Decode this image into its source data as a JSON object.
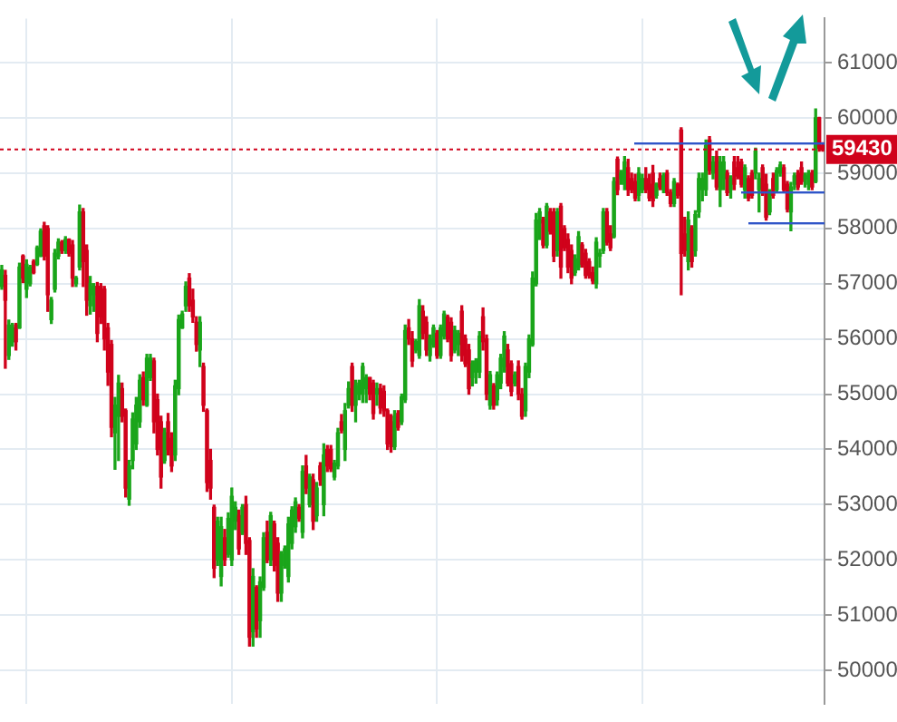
{
  "chart_data": {
    "type": "candlestick",
    "categories": [
      null,
      null,
      null,
      null,
      null,
      null,
      null,
      null,
      null,
      null,
      null,
      null,
      null,
      null,
      null,
      null,
      null,
      null,
      null,
      null,
      null,
      null,
      null,
      null,
      null,
      null,
      null,
      null,
      null,
      null,
      null,
      null,
      null,
      null,
      null,
      null,
      null,
      null,
      null,
      null,
      null,
      null,
      null,
      null,
      null,
      null,
      null,
      null,
      null,
      null,
      null,
      null,
      null,
      null,
      null,
      null,
      null,
      null,
      null,
      null,
      null,
      null,
      null,
      null,
      null,
      null,
      null,
      null,
      null,
      null,
      null,
      null,
      null,
      null,
      null,
      null,
      null,
      null,
      null,
      null,
      null,
      null,
      null,
      null,
      null,
      null,
      null,
      null,
      null,
      null,
      null,
      null,
      null,
      null,
      null,
      null,
      null,
      null,
      null,
      null,
      null,
      null,
      null,
      null,
      null,
      null,
      null,
      null,
      null,
      null,
      null,
      null,
      null,
      null,
      null,
      null,
      null,
      null,
      null,
      null,
      null,
      null,
      null,
      null,
      null,
      null,
      null,
      null,
      null,
      null,
      null,
      null,
      null,
      null,
      null,
      null,
      null,
      null,
      null,
      null,
      null,
      null,
      null,
      null,
      null,
      null,
      null,
      null,
      null,
      null,
      null,
      null,
      null,
      null,
      null,
      null,
      null,
      null,
      null,
      null,
      null,
      null,
      null,
      null,
      null,
      null,
      null,
      null,
      null,
      null,
      null,
      null,
      null,
      null,
      null,
      null,
      null,
      null,
      null,
      null,
      null,
      null,
      null,
      null,
      null,
      null,
      null,
      null,
      null,
      null,
      null,
      null,
      null,
      null,
      null,
      null,
      null,
      null,
      null,
      null,
      null,
      null,
      null,
      null,
      null,
      null,
      null,
      null,
      null,
      null,
      null,
      null,
      null,
      null,
      null,
      null,
      null,
      null,
      null,
      null,
      null,
      null,
      null,
      null,
      null,
      null,
      null,
      null,
      null,
      null,
      null,
      null,
      null
    ],
    "ohlc": [
      [
        56950,
        57330,
        56900,
        57250
      ],
      [
        57150,
        57240,
        55470,
        56700
      ],
      [
        55700,
        56340,
        55630,
        56250
      ],
      [
        55950,
        56280,
        55870,
        56200
      ],
      [
        56250,
        56280,
        55800,
        55950
      ],
      [
        56200,
        57370,
        56190,
        57300
      ],
      [
        57500,
        57520,
        57020,
        57100
      ],
      [
        56900,
        57430,
        56750,
        57350
      ],
      [
        57000,
        57330,
        56960,
        57300
      ],
      [
        57400,
        57430,
        57180,
        57200
      ],
      [
        57350,
        57680,
        57330,
        57650
      ],
      [
        57500,
        57990,
        57490,
        57950
      ],
      [
        58050,
        58110,
        57430,
        57500
      ],
      [
        58000,
        58050,
        56500,
        56800
      ],
      [
        56350,
        56750,
        56280,
        56700
      ],
      [
        56900,
        57620,
        56850,
        57550
      ],
      [
        57500,
        57810,
        57450,
        57750
      ],
      [
        57750,
        57780,
        57550,
        57600
      ],
      [
        57600,
        57850,
        57550,
        57800
      ],
      [
        57800,
        57810,
        57500,
        57550
      ],
      [
        57700,
        57780,
        56950,
        57100
      ],
      [
        57000,
        57130,
        56950,
        57100
      ],
      [
        57300,
        58420,
        57250,
        58300
      ],
      [
        58300,
        58360,
        56950,
        57400
      ],
      [
        57600,
        57700,
        56430,
        56700
      ],
      [
        56600,
        57130,
        56450,
        57000
      ],
      [
        56800,
        57000,
        56500,
        56950
      ],
      [
        56950,
        57020,
        55950,
        56100
      ],
      [
        56950,
        57000,
        56280,
        56400
      ],
      [
        56900,
        56950,
        55800,
        56000
      ],
      [
        56200,
        56280,
        55160,
        55400
      ],
      [
        55900,
        55970,
        54230,
        54400
      ],
      [
        54300,
        54940,
        53640,
        54800
      ],
      [
        54600,
        55340,
        53800,
        55200
      ],
      [
        55100,
        55200,
        54500,
        54600
      ],
      [
        54700,
        54730,
        53140,
        53300
      ],
      [
        53100,
        53800,
        52990,
        53700
      ],
      [
        53800,
        54660,
        53650,
        54550
      ],
      [
        54100,
        54940,
        54000,
        54800
      ],
      [
        54500,
        55350,
        54400,
        55250
      ],
      [
        55300,
        55400,
        54800,
        54900
      ],
      [
        54800,
        55720,
        54780,
        55650
      ],
      [
        55300,
        55720,
        55250,
        55650
      ],
      [
        55600,
        55650,
        54300,
        54500
      ],
      [
        54900,
        55000,
        53900,
        54000
      ],
      [
        54500,
        54600,
        53300,
        53500
      ],
      [
        53800,
        54380,
        53750,
        54300
      ],
      [
        54500,
        54650,
        53900,
        54000
      ],
      [
        54200,
        54300,
        53600,
        53700
      ],
      [
        53900,
        55250,
        53800,
        55150
      ],
      [
        55100,
        56430,
        54990,
        56350
      ],
      [
        56200,
        56500,
        56190,
        56450
      ],
      [
        56600,
        57030,
        56500,
        56950
      ],
      [
        57100,
        57180,
        56500,
        56600
      ],
      [
        56700,
        56900,
        56300,
        56400
      ],
      [
        56300,
        56400,
        55780,
        55900
      ],
      [
        55800,
        56400,
        55500,
        56300
      ],
      [
        55500,
        55560,
        54690,
        54800
      ],
      [
        54700,
        54730,
        53240,
        53400
      ],
      [
        53800,
        54000,
        53100,
        53300
      ],
      [
        52950,
        52990,
        51680,
        51850
      ],
      [
        52000,
        52770,
        51900,
        52700
      ],
      [
        51700,
        52770,
        51530,
        52600
      ],
      [
        52400,
        52550,
        51900,
        52000
      ],
      [
        52100,
        52850,
        52050,
        52750
      ],
      [
        52000,
        53300,
        51900,
        53150
      ],
      [
        52700,
        53050,
        52550,
        52950
      ],
      [
        52800,
        52900,
        52100,
        52200
      ],
      [
        52500,
        53000,
        52460,
        52950
      ],
      [
        53000,
        53150,
        52100,
        52300
      ],
      [
        52350,
        52400,
        50440,
        50600
      ],
      [
        50700,
        51840,
        50440,
        51700
      ],
      [
        51500,
        51530,
        50600,
        50750
      ],
      [
        50900,
        51690,
        50600,
        51600
      ],
      [
        51500,
        52490,
        51450,
        52400
      ],
      [
        52500,
        52700,
        51950,
        52000
      ],
      [
        52000,
        52860,
        51900,
        52800
      ],
      [
        52650,
        52700,
        51800,
        51900
      ],
      [
        52300,
        52400,
        51250,
        51400
      ],
      [
        51400,
        52150,
        51250,
        52100
      ],
      [
        51900,
        52250,
        51850,
        52200
      ],
      [
        51700,
        52770,
        51600,
        52650
      ],
      [
        52300,
        52960,
        52200,
        52900
      ],
      [
        52600,
        53120,
        52500,
        53050
      ],
      [
        52950,
        53000,
        52700,
        52750
      ],
      [
        52500,
        53700,
        52400,
        53600
      ],
      [
        53700,
        53890,
        53200,
        53300
      ],
      [
        53000,
        53550,
        52960,
        53500
      ],
      [
        53450,
        53550,
        52550,
        52700
      ],
      [
        52800,
        53400,
        52700,
        53300
      ],
      [
        53700,
        53760,
        53350,
        53450
      ],
      [
        53000,
        54100,
        52800,
        53900
      ],
      [
        54000,
        54070,
        53600,
        53700
      ],
      [
        54000,
        54070,
        53600,
        53650
      ],
      [
        53500,
        53800,
        53450,
        53750
      ],
      [
        53700,
        54380,
        53650,
        54300
      ],
      [
        54500,
        54630,
        54300,
        54350
      ],
      [
        54000,
        54830,
        53800,
        54700
      ],
      [
        54800,
        55220,
        54750,
        55100
      ],
      [
        55500,
        55560,
        54690,
        54800
      ],
      [
        54800,
        55250,
        54500,
        55150
      ],
      [
        55000,
        55250,
        54900,
        55200
      ],
      [
        55000,
        55560,
        54850,
        55500
      ],
      [
        55100,
        55350,
        54850,
        55300
      ],
      [
        55300,
        55300,
        54900,
        55000
      ],
      [
        55200,
        55250,
        54550,
        54650
      ],
      [
        55000,
        55200,
        54800,
        55100
      ],
      [
        55100,
        55180,
        54650,
        54750
      ],
      [
        55050,
        55150,
        54600,
        54700
      ],
      [
        54700,
        54730,
        54000,
        54100
      ],
      [
        54500,
        54630,
        53950,
        54050
      ],
      [
        54050,
        54700,
        54000,
        54600
      ],
      [
        54650,
        54700,
        54350,
        54400
      ],
      [
        54500,
        55000,
        54450,
        54950
      ],
      [
        54900,
        56250,
        54850,
        56150
      ],
      [
        56200,
        56350,
        55900,
        56000
      ],
      [
        56000,
        56130,
        55500,
        55600
      ],
      [
        55800,
        55990,
        55750,
        55950
      ],
      [
        55700,
        56710,
        55650,
        56600
      ],
      [
        56500,
        56600,
        56000,
        56100
      ],
      [
        56300,
        56400,
        55700,
        55800
      ],
      [
        55700,
        56070,
        55600,
        56000
      ],
      [
        55900,
        56250,
        55850,
        56200
      ],
      [
        56100,
        56150,
        55650,
        55700
      ],
      [
        55700,
        56250,
        55650,
        56200
      ],
      [
        56050,
        56500,
        56000,
        56450
      ],
      [
        56400,
        56430,
        55950,
        56000
      ],
      [
        56300,
        56380,
        55600,
        55700
      ],
      [
        55800,
        56230,
        55750,
        56150
      ],
      [
        55900,
        56150,
        55700,
        56100
      ],
      [
        56500,
        56600,
        55600,
        55700
      ],
      [
        56000,
        56070,
        55500,
        55550
      ],
      [
        55800,
        55900,
        55000,
        55100
      ],
      [
        55300,
        55600,
        55150,
        55550
      ],
      [
        55400,
        55640,
        55200,
        55600
      ],
      [
        55400,
        56130,
        55300,
        56050
      ],
      [
        56400,
        56560,
        55800,
        55950
      ],
      [
        56000,
        56070,
        54900,
        55000
      ],
      [
        54800,
        55410,
        54730,
        55350
      ],
      [
        55150,
        55190,
        54730,
        54800
      ],
      [
        54900,
        55400,
        54800,
        55350
      ],
      [
        55200,
        55720,
        55100,
        55650
      ],
      [
        55500,
        56130,
        55400,
        56050
      ],
      [
        55800,
        55900,
        55150,
        55200
      ],
      [
        55550,
        55600,
        54970,
        55050
      ],
      [
        55200,
        55400,
        55150,
        55350
      ],
      [
        55500,
        55600,
        54900,
        55000
      ],
      [
        55000,
        55100,
        54550,
        54600
      ],
      [
        54700,
        55560,
        54600,
        55500
      ],
      [
        55400,
        56070,
        55300,
        56000
      ],
      [
        55900,
        57210,
        55870,
        57100
      ],
      [
        57000,
        58270,
        56960,
        58150
      ],
      [
        58100,
        58360,
        57800,
        58300
      ],
      [
        58150,
        58200,
        57650,
        57700
      ],
      [
        57700,
        58450,
        57650,
        58400
      ],
      [
        58300,
        58360,
        57900,
        57950
      ],
      [
        58300,
        58360,
        57400,
        57500
      ],
      [
        57600,
        58360,
        57500,
        58300
      ],
      [
        58400,
        58450,
        57100,
        57300
      ],
      [
        58000,
        58050,
        57600,
        57650
      ],
      [
        57800,
        57900,
        57200,
        57300
      ],
      [
        57600,
        57700,
        57000,
        57100
      ],
      [
        57200,
        57520,
        57150,
        57450
      ],
      [
        57300,
        57940,
        57250,
        57850
      ],
      [
        57700,
        57740,
        57300,
        57350
      ],
      [
        57550,
        57620,
        57100,
        57150
      ],
      [
        57400,
        57450,
        57100,
        57150
      ],
      [
        57200,
        57300,
        57000,
        57050
      ],
      [
        57000,
        57830,
        56920,
        57750
      ],
      [
        57500,
        57620,
        57300,
        57550
      ],
      [
        57600,
        58360,
        57550,
        58300
      ],
      [
        58300,
        58360,
        57700,
        57750
      ],
      [
        57900,
        58050,
        57600,
        57650
      ],
      [
        57850,
        58920,
        57830,
        58850
      ],
      [
        59250,
        59290,
        58610,
        58700
      ],
      [
        58900,
        59050,
        58800,
        59000
      ],
      [
        58800,
        59300,
        58700,
        59200
      ],
      [
        59100,
        59250,
        58600,
        58700
      ],
      [
        58900,
        59000,
        58650,
        58700
      ],
      [
        58850,
        58980,
        58500,
        58550
      ],
      [
        58600,
        59100,
        58500,
        59000
      ],
      [
        58700,
        58980,
        58650,
        58900
      ],
      [
        58900,
        59100,
        58650,
        58700
      ],
      [
        58800,
        58980,
        58500,
        58550
      ],
      [
        59000,
        59140,
        58400,
        58500
      ],
      [
        58600,
        58820,
        58550,
        58800
      ],
      [
        58900,
        59000,
        58700,
        58750
      ],
      [
        58700,
        59000,
        58650,
        58950
      ],
      [
        59000,
        59050,
        58600,
        58650
      ],
      [
        58650,
        58700,
        58400,
        58450
      ],
      [
        58450,
        58900,
        58400,
        58850
      ],
      [
        58800,
        58820,
        58550,
        58600
      ],
      [
        59780,
        59820,
        56800,
        57550
      ],
      [
        57900,
        58200,
        57500,
        57600
      ],
      [
        57400,
        58300,
        57250,
        58150
      ],
      [
        58000,
        58050,
        57300,
        57400
      ],
      [
        57600,
        58320,
        57500,
        58250
      ],
      [
        58300,
        59000,
        58200,
        58900
      ],
      [
        58700,
        59000,
        58500,
        58900
      ],
      [
        58700,
        59600,
        58600,
        59500
      ],
      [
        59600,
        59660,
        58980,
        59050
      ],
      [
        59000,
        59300,
        58900,
        59200
      ],
      [
        59300,
        59400,
        58700,
        58750
      ],
      [
        58700,
        59300,
        58400,
        59200
      ],
      [
        58900,
        59300,
        58700,
        59200
      ],
      [
        59000,
        59050,
        58600,
        58650
      ],
      [
        58700,
        58950,
        58550,
        58900
      ],
      [
        59200,
        59300,
        58700,
        58800
      ],
      [
        59100,
        59300,
        58900,
        58950
      ],
      [
        59200,
        59250,
        58750,
        58800
      ],
      [
        58700,
        59150,
        58550,
        59100
      ],
      [
        58900,
        58950,
        58500,
        58550
      ],
      [
        59000,
        59050,
        58550,
        58600
      ],
      [
        59000,
        59450,
        58900,
        59400
      ],
      [
        58700,
        59000,
        58300,
        58900
      ],
      [
        59100,
        59150,
        58600,
        58650
      ],
      [
        58800,
        58980,
        58150,
        58200
      ],
      [
        58300,
        58700,
        58250,
        58650
      ],
      [
        58900,
        59000,
        58550,
        58600
      ],
      [
        58700,
        59100,
        58650,
        59050
      ],
      [
        59000,
        59200,
        58950,
        59150
      ],
      [
        59100,
        59150,
        58650,
        58700
      ],
      [
        58800,
        58850,
        58300,
        58350
      ],
      [
        58300,
        58830,
        57960,
        58750
      ],
      [
        58800,
        59000,
        58700,
        58950
      ],
      [
        59000,
        59050,
        58700,
        58750
      ],
      [
        59100,
        59200,
        58800,
        58850
      ],
      [
        58900,
        59000,
        58750,
        58950
      ],
      [
        58800,
        59050,
        58700,
        59000
      ],
      [
        59000,
        59050,
        58700,
        58750
      ],
      [
        58850,
        60160,
        58830,
        60000
      ],
      [
        60000,
        60010,
        59400,
        59450
      ],
      [
        59500,
        59550,
        59400,
        59430
      ]
    ],
    "colors": [
      "#1aa51a",
      "#d0021b",
      "#1aa51a",
      "#1aa51a",
      "#d0021b",
      "#1aa51a",
      "#d0021b",
      "#1aa51a",
      "#1aa51a",
      "#d0021b",
      "#1aa51a",
      "#1aa51a",
      "#d0021b",
      "#d0021b",
      "#1aa51a",
      "#1aa51a",
      "#1aa51a",
      "#d0021b",
      "#1aa51a",
      "#d0021b",
      "#d0021b",
      "#1aa51a",
      "#1aa51a",
      "#d0021b",
      "#d0021b",
      "#1aa51a",
      "#1aa51a",
      "#d0021b",
      "#d0021b",
      "#d0021b",
      "#d0021b",
      "#d0021b",
      "#1aa51a",
      "#1aa51a",
      "#d0021b",
      "#d0021b",
      "#1aa51a",
      "#1aa51a",
      "#1aa51a",
      "#1aa51a",
      "#d0021b",
      "#1aa51a",
      "#1aa51a",
      "#d0021b",
      "#d0021b",
      "#d0021b",
      "#1aa51a",
      "#d0021b",
      "#d0021b",
      "#1aa51a",
      "#1aa51a",
      "#1aa51a",
      "#1aa51a",
      "#d0021b",
      "#d0021b",
      "#d0021b",
      "#1aa51a",
      "#d0021b",
      "#d0021b",
      "#d0021b",
      "#d0021b",
      "#1aa51a",
      "#1aa51a",
      "#d0021b",
      "#1aa51a",
      "#1aa51a",
      "#1aa51a",
      "#d0021b",
      "#1aa51a",
      "#d0021b",
      "#d0021b",
      "#1aa51a",
      "#d0021b",
      "#1aa51a",
      "#1aa51a",
      "#d0021b",
      "#1aa51a",
      "#d0021b",
      "#d0021b",
      "#1aa51a",
      "#1aa51a",
      "#1aa51a",
      "#1aa51a",
      "#1aa51a",
      "#d0021b",
      "#1aa51a",
      "#d0021b",
      "#1aa51a",
      "#d0021b",
      "#1aa51a",
      "#d0021b",
      "#1aa51a",
      "#d0021b",
      "#d0021b",
      "#1aa51a",
      "#1aa51a",
      "#d0021b",
      "#1aa51a",
      "#1aa51a",
      "#d0021b",
      "#1aa51a",
      "#1aa51a",
      "#1aa51a",
      "#1aa51a",
      "#d0021b",
      "#d0021b",
      "#1aa51a",
      "#d0021b",
      "#d0021b",
      "#d0021b",
      "#d0021b",
      "#1aa51a",
      "#d0021b",
      "#1aa51a",
      "#1aa51a",
      "#d0021b",
      "#d0021b",
      "#1aa51a",
      "#1aa51a",
      "#d0021b",
      "#d0021b",
      "#1aa51a",
      "#1aa51a",
      "#d0021b",
      "#1aa51a",
      "#1aa51a",
      "#d0021b",
      "#d0021b",
      "#1aa51a",
      "#1aa51a",
      "#d0021b",
      "#d0021b",
      "#d0021b",
      "#1aa51a",
      "#1aa51a",
      "#1aa51a",
      "#d0021b",
      "#d0021b",
      "#1aa51a",
      "#d0021b",
      "#1aa51a",
      "#1aa51a",
      "#1aa51a",
      "#d0021b",
      "#d0021b",
      "#1aa51a",
      "#d0021b",
      "#d0021b",
      "#1aa51a",
      "#1aa51a",
      "#1aa51a",
      "#1aa51a",
      "#1aa51a",
      "#d0021b",
      "#1aa51a",
      "#d0021b",
      "#d0021b",
      "#1aa51a",
      "#d0021b",
      "#d0021b",
      "#d0021b",
      "#d0021b",
      "#1aa51a",
      "#1aa51a",
      "#d0021b",
      "#d0021b",
      "#d0021b",
      "#d0021b",
      "#1aa51a",
      "#1aa51a",
      "#1aa51a",
      "#d0021b",
      "#d0021b",
      "#1aa51a",
      "#d0021b",
      "#1aa51a",
      "#1aa51a",
      "#d0021b",
      "#d0021b",
      "#d0021b",
      "#1aa51a",
      "#1aa51a",
      "#d0021b",
      "#d0021b",
      "#d0021b",
      "#1aa51a",
      "#d0021b",
      "#1aa51a",
      "#d0021b",
      "#d0021b",
      "#1aa51a",
      "#d0021b",
      "#d0021b",
      "#d0021b",
      "#1aa51a",
      "#d0021b",
      "#1aa51a",
      "#1aa51a",
      "#1aa51a",
      "#1aa51a",
      "#d0021b",
      "#1aa51a",
      "#d0021b",
      "#1aa51a",
      "#1aa51a",
      "#d0021b",
      "#1aa51a",
      "#d0021b",
      "#d0021b",
      "#d0021b",
      "#1aa51a",
      "#d0021b",
      "#d0021b",
      "#1aa51a",
      "#1aa51a",
      "#d0021b",
      "#d0021b",
      "#1aa51a",
      "#d0021b",
      "#1aa51a",
      "#1aa51a",
      "#d0021b",
      "#d0021b",
      "#1aa51a",
      "#1aa51a",
      "#d0021b",
      "#d0021b",
      "#1aa51a",
      "#1aa51a",
      "#d0021b",
      "#1aa51a",
      "#d0021b",
      "#d0021b"
    ],
    "ylim": [
      49400,
      61800
    ],
    "yticks": [
      50000,
      51000,
      52000,
      53000,
      54000,
      55000,
      56000,
      57000,
      58000,
      59000,
      60000,
      61000
    ],
    "grid": true,
    "tick_labels": "y",
    "legend": false,
    "ref_lines": [
      {
        "axis": "y",
        "value": 59430,
        "label": "59430",
        "color": "#d0021b",
        "line_style": "dotted"
      }
    ]
  }
}
